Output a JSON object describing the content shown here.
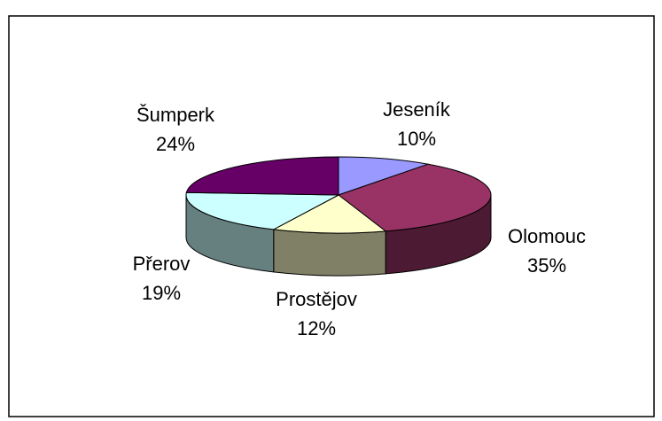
{
  "chart_data": {
    "type": "pie",
    "categories": [
      "Jeseník",
      "Olomouc",
      "Prostějov",
      "Přerov",
      "Šumperk"
    ],
    "values": [
      10,
      35,
      12,
      19,
      24
    ],
    "value_labels": [
      "10%",
      "35%",
      "12%",
      "19%",
      "24%"
    ],
    "colors": [
      "#9999ff",
      "#993366",
      "#ffffcc",
      "#ccffff",
      "#660066"
    ]
  }
}
